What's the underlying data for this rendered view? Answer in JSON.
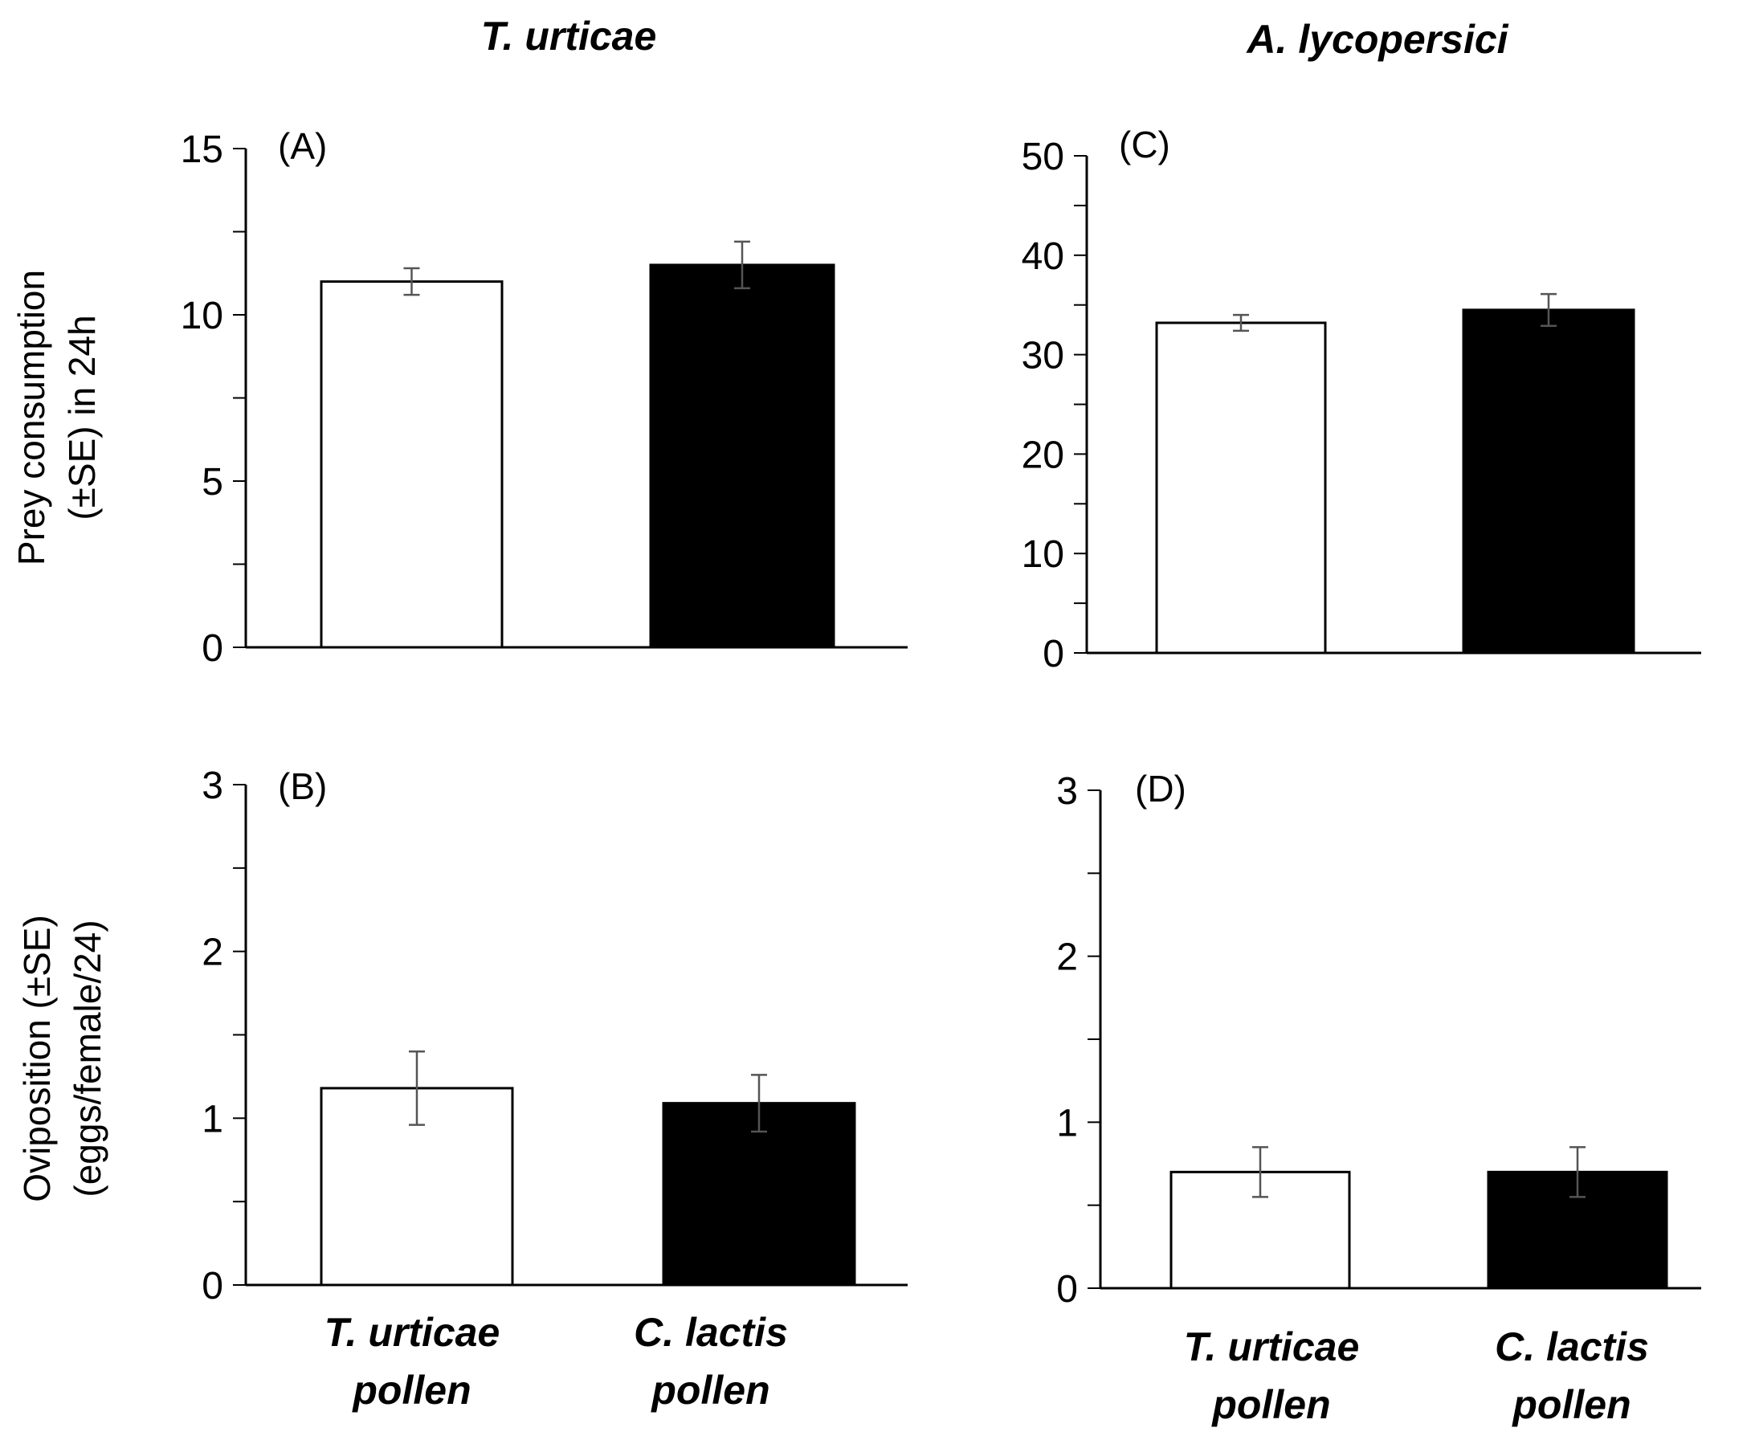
{
  "column_titles": [
    "T. urticae",
    "A. lycopersici"
  ],
  "y_labels": {
    "top": [
      "Prey consumption",
      "(±SE)  in  24h"
    ],
    "bottom": [
      "Oviposition (±SE)",
      "(eggs/female/24)"
    ]
  },
  "category_labels": [
    [
      "T. urticae",
      "pollen"
    ],
    [
      "C. lactis",
      "pollen"
    ]
  ],
  "colors": {
    "bar_1": "#ffffff",
    "bar_2": "#000000",
    "axis": "#000000",
    "error_bar": "#555555"
  },
  "chart_data": [
    {
      "type": "bar",
      "panel": "(A)",
      "title": "T. urticae",
      "ylabel": "Prey consumption (±SE)  in  24h",
      "categories": [
        "T. urticae pollen",
        "C. lactis pollen"
      ],
      "values": [
        11.0,
        11.5
      ],
      "errors": [
        0.4,
        0.7
      ],
      "ylim": [
        0,
        15
      ],
      "major_ticks": [
        0,
        5,
        10,
        15
      ],
      "minor_step": 2.5,
      "grid": false
    },
    {
      "type": "bar",
      "panel": "(B)",
      "title": "T. urticae",
      "ylabel": "Oviposition (±SE) (eggs/female/24)",
      "categories": [
        "T. urticae pollen",
        "C. lactis pollen"
      ],
      "values": [
        1.18,
        1.09
      ],
      "errors": [
        0.22,
        0.17
      ],
      "ylim": [
        0,
        3
      ],
      "major_ticks": [
        0,
        1,
        2,
        3
      ],
      "minor_step": 0.5,
      "grid": false
    },
    {
      "type": "bar",
      "panel": "(C)",
      "title": "A. lycopersici",
      "ylabel": "Prey consumption (±SE)  in  24h",
      "categories": [
        "T. urticae pollen",
        "C. lactis pollen"
      ],
      "values": [
        33.2,
        34.5
      ],
      "errors": [
        0.8,
        1.6
      ],
      "ylim": [
        0,
        50
      ],
      "major_ticks": [
        0,
        10,
        20,
        30,
        40,
        50
      ],
      "minor_step": 5,
      "grid": false
    },
    {
      "type": "bar",
      "panel": "(D)",
      "title": "A. lycopersici",
      "ylabel": "Oviposition (±SE) (eggs/female/24)",
      "categories": [
        "T. urticae pollen",
        "C. lactis pollen"
      ],
      "values": [
        0.7,
        0.7
      ],
      "errors": [
        0.15,
        0.15
      ],
      "ylim": [
        0,
        3
      ],
      "major_ticks": [
        0,
        1,
        2,
        3
      ],
      "minor_step": 0.5,
      "grid": false
    }
  ]
}
